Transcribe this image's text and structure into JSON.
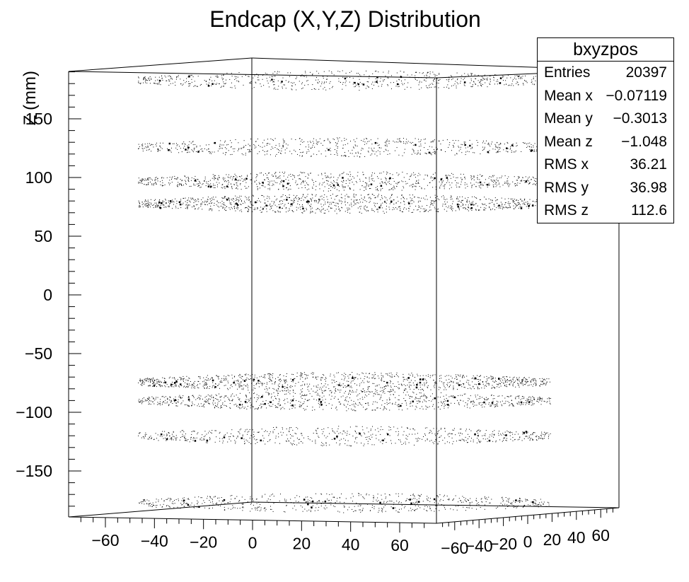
{
  "chart_data": {
    "type": "scatter",
    "title": "Endcap (X,Y,Z) Distribution",
    "zlabel": "Z (mm)",
    "x_ticks": [
      "−60",
      "−40",
      "−20",
      "0",
      "20",
      "40",
      "60"
    ],
    "y_ticks": [
      "−60",
      "−40",
      "−20",
      "0",
      "20",
      "40",
      "60"
    ],
    "z_ticks": [
      "−150",
      "−100",
      "−50",
      "0",
      "50",
      "100",
      "150"
    ],
    "xlim": [
      -75,
      75
    ],
    "ylim": [
      -75,
      75
    ],
    "zlim": [
      -190,
      190
    ],
    "layers_z": [
      -177,
      -120,
      -90,
      -74,
      78,
      97,
      126,
      183
    ],
    "layer_density": [
      0.6,
      0.6,
      0.8,
      1.0,
      1.0,
      0.8,
      0.6,
      0.6
    ]
  },
  "stats": {
    "name": "bxyzpos",
    "rows": [
      {
        "label": "Entries",
        "value": "20397"
      },
      {
        "label": "Mean x",
        "value": "−0.07119"
      },
      {
        "label": "Mean y",
        "value": "−0.3013"
      },
      {
        "label": "Mean z",
        "value": "−1.048"
      },
      {
        "label": "RMS x",
        "value": "36.21"
      },
      {
        "label": "RMS y",
        "value": "36.98"
      },
      {
        "label": "RMS z",
        "value": "112.6"
      }
    ]
  }
}
